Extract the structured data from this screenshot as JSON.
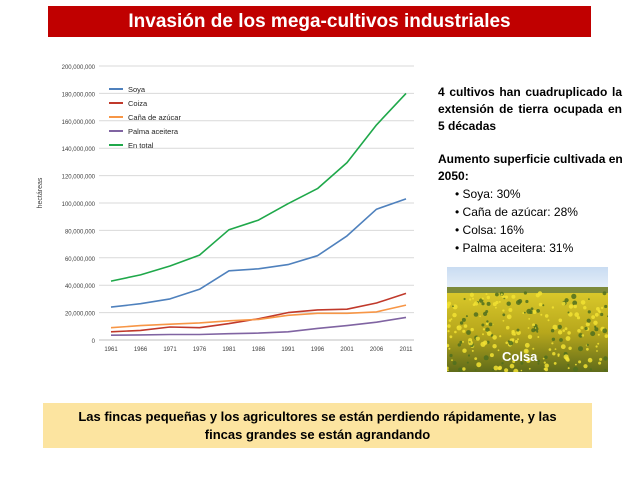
{
  "title": "Invasión de los mega-cultivos industriales",
  "summary": "4 cultivos han cuadruplicado la extensión de tierra ocupada en 5 décadas",
  "increase": {
    "title": "Aumento superficie cultivada en 2050:",
    "items": [
      "Soya: 30%",
      "Caña de azúcar: 28%",
      "Colsa: 16%",
      "Palma aceitera: 31%"
    ]
  },
  "photo": {
    "caption": "Colsa"
  },
  "footer": "Las fincas pequeñas y los agricultores se están perdiendo rápidamente, y las fincas grandes se están agrandando",
  "chart_data": {
    "type": "line",
    "ylabel": "hectáreas",
    "ylim": [
      0,
      200000000
    ],
    "yticks": [
      0,
      20000000,
      40000000,
      60000000,
      80000000,
      100000000,
      120000000,
      140000000,
      160000000,
      180000000,
      200000000
    ],
    "ytick_labels": [
      "0",
      "20,000,000",
      "40,000,000",
      "60,000,000",
      "80,000,000",
      "100,000,000",
      "120,000,000",
      "140,000,000",
      "160,000,000",
      "180,000,000",
      "200,000,000"
    ],
    "x": [
      "1961",
      "1966",
      "1971",
      "1976",
      "1981",
      "1986",
      "1991",
      "1996",
      "2001",
      "2006",
      "2011"
    ],
    "grid": true,
    "legend": "top-left",
    "series": [
      {
        "name": "Soya",
        "color": "#4f81bd",
        "values": [
          24000000,
          26500000,
          30000000,
          37000000,
          50500000,
          52000000,
          55000000,
          61500000,
          76000000,
          95500000,
          103000000
        ]
      },
      {
        "name": "Coiza",
        "color": "#c0392b",
        "values": [
          6000000,
          7000000,
          9500000,
          9000000,
          12000000,
          15500000,
          20000000,
          22000000,
          22500000,
          27000000,
          34000000
        ]
      },
      {
        "name": "Caña de azúcar",
        "color": "#f79646",
        "values": [
          9000000,
          10500000,
          11500000,
          12500000,
          14000000,
          15000000,
          18000000,
          19500000,
          19500000,
          20500000,
          25500000
        ]
      },
      {
        "name": "Palma aceitera",
        "color": "#8064a2",
        "values": [
          3500000,
          3700000,
          4000000,
          4000000,
          4600000,
          5000000,
          6000000,
          8500000,
          10500000,
          13000000,
          16500000
        ]
      },
      {
        "name": "En total",
        "color": "#1fa84a",
        "values": [
          43000000,
          47500000,
          54000000,
          62000000,
          80500000,
          87500000,
          99500000,
          110500000,
          129500000,
          157000000,
          180000000
        ]
      }
    ]
  }
}
